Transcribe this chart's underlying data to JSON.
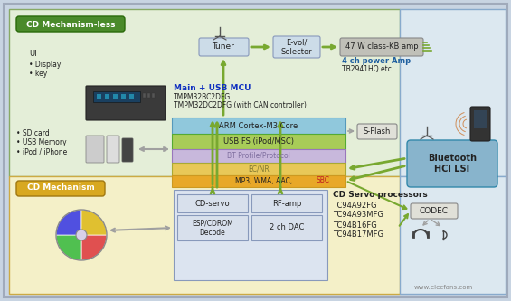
{
  "bg_outer": "#c8d4e2",
  "bg_top": "#e4eed8",
  "bg_bottom": "#f4f0c8",
  "bg_right_top": "#dce8f0",
  "bg_right_bot": "#dce8f0",
  "color_green_label": "#4a8a2a",
  "color_yellow_label": "#d8a820",
  "color_arm": "#90c8dc",
  "color_usb": "#a8cc58",
  "color_bt": "#c8b8dc",
  "color_ec": "#e8c858",
  "color_mp3": "#e8a828",
  "color_tuner_box": "#ccdce8",
  "color_amp_box": "#c0c0b8",
  "color_sflash": "#e0e0d8",
  "color_bt_box": "#88b4cc",
  "color_codec_box": "#e0e0d8",
  "color_cd_inner_bg": "#dce4f0",
  "color_cd_box": "#d8e0ec",
  "color_arrow_green": "#78a830",
  "color_arrow_gray": "#a0a0a0",
  "color_mcu_blue": "#1030c0",
  "color_amp_blue": "#2060a0",
  "color_sbc_red": "#c02020",
  "color_bt_text": "#8070a0",
  "color_ec_text": "#807830",
  "title_less": "CD Mechanism-less",
  "title_mech": "CD Mechanism",
  "lbl_ui": "UI",
  "lbl_display": "• Display",
  "lbl_key": "• key",
  "lbl_sd": "• SD card",
  "lbl_usb_mem": "• USB Memory",
  "lbl_ipod": "• iPod / iPhone",
  "lbl_tuner": "Tuner",
  "lbl_evol": "E-vol/\nSelector",
  "lbl_amp": "47 W class-KB amp",
  "lbl_4ch": "4 ch power Amp",
  "lbl_tb": "TB2941HQ etc.",
  "lbl_mcu": "Main + USB MCU",
  "lbl_mcu1": "TMPM32BC2DFG",
  "lbl_mcu2": "TMPM32DC2DFG (with CAN controller)",
  "lbl_arm": "ARM Cortex-M3 Core",
  "lbl_usb": "USB FS (iPod/MSC)",
  "lbl_bt_proto": "BT Profile/Protocol",
  "lbl_ec": "EC/NR",
  "lbl_mp3": "MP3, WMA, AAC, ",
  "lbl_sbc": "SBC",
  "lbl_sflash": "S-Flash",
  "lbl_bt": "Bluetooth\nHCI LSI",
  "lbl_codec": "CODEC",
  "lbl_cd_servo": "CD-servo",
  "lbl_rfamp": "RF-amp",
  "lbl_esp": "ESP/CDROM\nDecode",
  "lbl_dac": "2 ch DAC",
  "lbl_cd_proc": "CD Servo processors",
  "lbl_tc1": "TC94A92FG",
  "lbl_tc2": "TC94A93MFG",
  "lbl_tc3": "TC94B16FG",
  "lbl_tc4": "TC94B17MFG",
  "lbl_watermark": "www.elecfans.com"
}
